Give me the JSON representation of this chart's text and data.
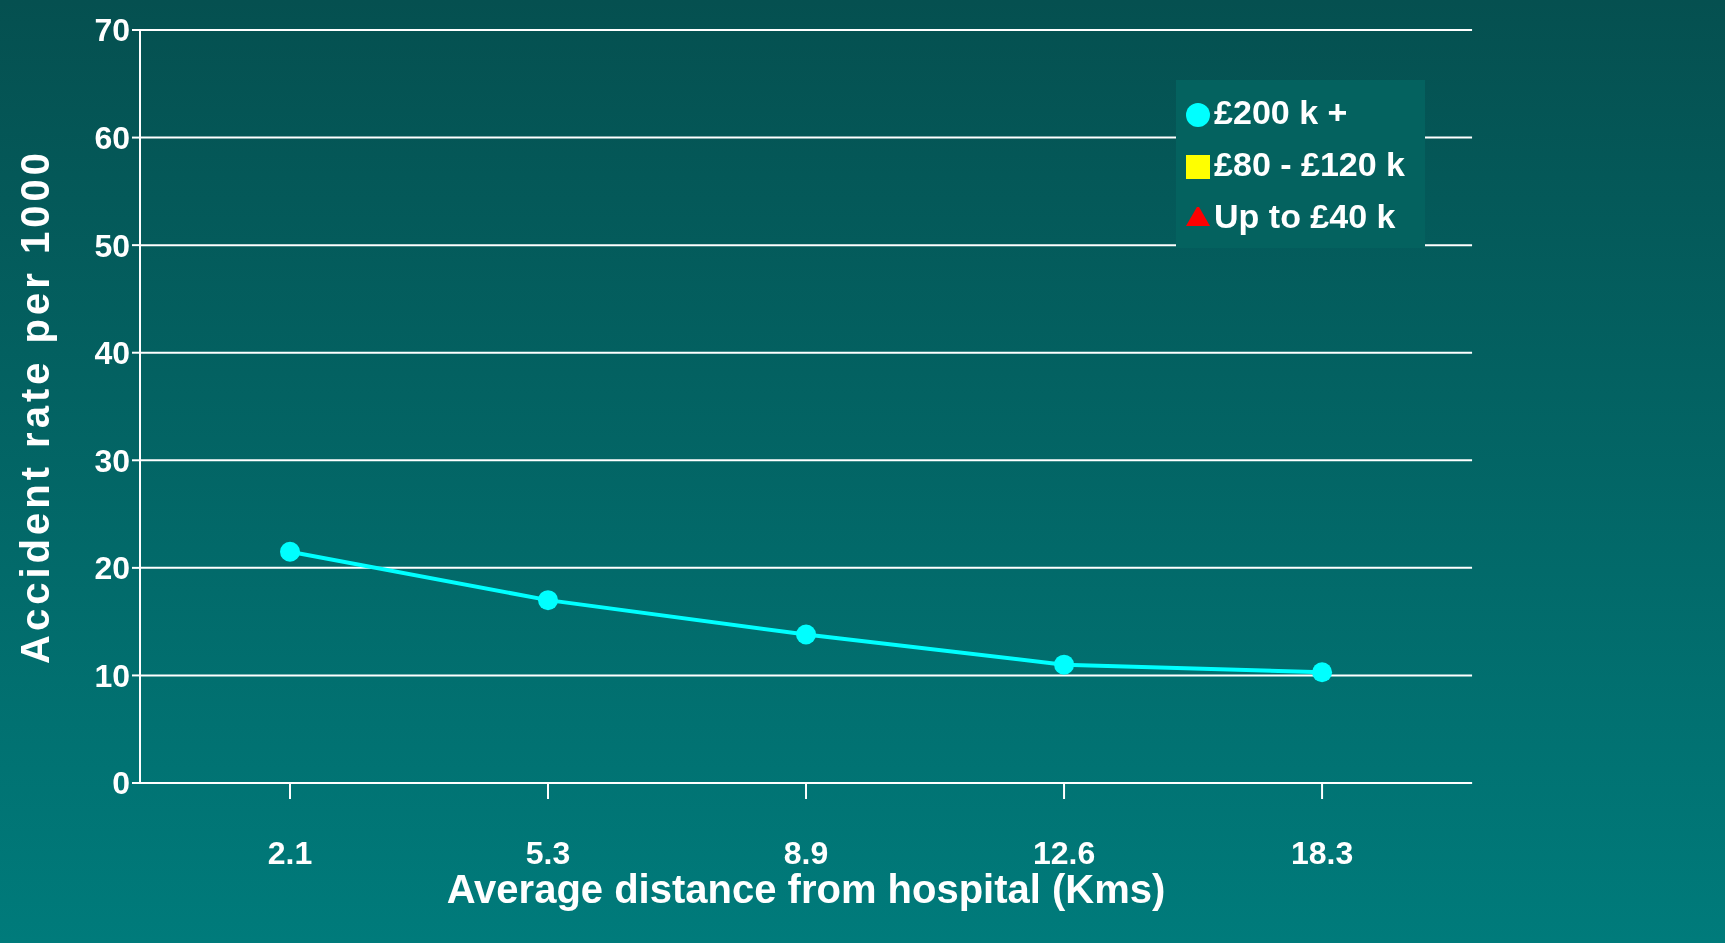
{
  "chart_data": {
    "type": "line",
    "xlabel": "Average distance from hospital (Kms)",
    "ylabel": "Accident rate per 1000",
    "categories": [
      "2.1",
      "5.3",
      "8.9",
      "12.6",
      "18.3"
    ],
    "series": [
      {
        "name": "£200 k +",
        "color": "#00ffff",
        "marker": "circle",
        "values": [
          21.5,
          17,
          13.8,
          11,
          10.3
        ]
      },
      {
        "name": "£80 - £120 k",
        "color": "#ffff00",
        "marker": "square",
        "values": [
          null,
          null,
          null,
          null,
          null
        ]
      },
      {
        "name": "Up to £40 k",
        "color": "#ff0000",
        "marker": "triangle",
        "values": [
          null,
          null,
          null,
          null,
          null
        ]
      }
    ],
    "ylim": [
      0,
      70
    ],
    "yticks": [
      0,
      10,
      20,
      30,
      40,
      50,
      60,
      70
    ],
    "grid": "y",
    "legend": "top right"
  }
}
